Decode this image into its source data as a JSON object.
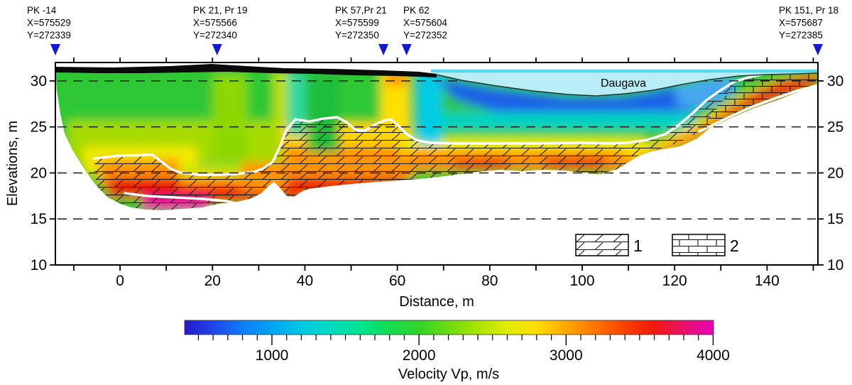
{
  "figure": {
    "type": "seismic refraction tomography cross-section"
  },
  "markers": [
    {
      "label": "PK -14",
      "x_coord": "X=575529",
      "y_coord": "Y=272339",
      "distance_m": -14
    },
    {
      "label": "PK 21, Pr 19",
      "x_coord": "X=575566",
      "y_coord": "Y=272340",
      "distance_m": 21
    },
    {
      "label": "PK 57,Pr 21",
      "x_coord": "X=575599",
      "y_coord": "Y=272350",
      "distance_m": 57
    },
    {
      "label": "PK 62",
      "x_coord": "X=575604",
      "y_coord": "Y=272352",
      "distance_m": 62
    },
    {
      "label": "PK 151, Pr 18",
      "x_coord": "X=575687",
      "y_coord": "Y=272385",
      "distance_m": 151
    }
  ],
  "axes": {
    "x": {
      "title": "Distance, m",
      "tick_values": [
        -10,
        0,
        10,
        20,
        30,
        40,
        50,
        60,
        70,
        80,
        90,
        100,
        110,
        120,
        130,
        140,
        150
      ],
      "labeled_values": [
        0,
        20,
        40,
        60,
        80,
        100,
        120,
        140
      ],
      "range": [
        -14,
        151
      ]
    },
    "y": {
      "title": "Elevations, m",
      "labeled_values": [
        30,
        25,
        20,
        15,
        10
      ],
      "grid_values": [
        30,
        25,
        20,
        15
      ],
      "range": [
        10,
        32
      ]
    }
  },
  "water": {
    "label": "Daugava"
  },
  "legend": {
    "items": [
      {
        "label": "1",
        "pattern": "brick-with-diagonal-hachure"
      },
      {
        "label": "2",
        "pattern": "brick"
      }
    ]
  },
  "colorbar": {
    "title": "Velocity Vp, m/s",
    "major_ticks": [
      1000,
      2000,
      3000,
      4000
    ],
    "minor_tick_step": 100,
    "range": [
      400,
      4000
    ],
    "stops": [
      [
        400,
        "#2418c8"
      ],
      [
        600,
        "#1e46ec"
      ],
      [
        800,
        "#0f7cf8"
      ],
      [
        1000,
        "#00a6f4"
      ],
      [
        1200,
        "#00c8e4"
      ],
      [
        1400,
        "#00dcc0"
      ],
      [
        1600,
        "#00e490"
      ],
      [
        1800,
        "#14dc50"
      ],
      [
        2000,
        "#30d428"
      ],
      [
        2200,
        "#6cdc10"
      ],
      [
        2400,
        "#aae400"
      ],
      [
        2600,
        "#e2ec00"
      ],
      [
        2800,
        "#ffdc00"
      ],
      [
        3000,
        "#ffa800"
      ],
      [
        3200,
        "#ff7400"
      ],
      [
        3400,
        "#fa4000"
      ],
      [
        3600,
        "#f0180c"
      ],
      [
        3800,
        "#ea1168"
      ],
      [
        3950,
        "#e804a8"
      ],
      [
        4000,
        "#e600b4"
      ]
    ]
  },
  "colors": {
    "marker": "#1717cc",
    "water_body": "#b9edf6",
    "water_surface": "#54d8ea",
    "river_bed_line": "#1c3a2e",
    "surface_band": "#0a0a0a",
    "boundary": "#ffffff"
  },
  "chart_data": {
    "type": "heatmap",
    "subtype": "seismic P-wave velocity tomogram along a river crossing",
    "xlabel": "Distance, m",
    "ylabel": "Elevations, m",
    "xlim": [
      -14,
      151
    ],
    "ylim": [
      10,
      32
    ],
    "x_ticks_labeled": [
      0,
      20,
      40,
      60,
      80,
      100,
      120,
      140
    ],
    "y_ticks_labeled": [
      30,
      25,
      20,
      15,
      10
    ],
    "grid": "dashed horizontal lines at elevations 30, 25, 20, 15 m",
    "colorbar": {
      "label": "Velocity Vp, m/s",
      "min": 400,
      "max": 4000,
      "ticks": [
        1000,
        2000,
        3000,
        4000
      ],
      "minor_step": 100
    },
    "survey_points": [
      {
        "label": "PK -14",
        "X": 575529,
        "Y": 272339,
        "distance_m": -14
      },
      {
        "label": "PK 21, Pr 19",
        "X": 575566,
        "Y": 272340,
        "distance_m": 21
      },
      {
        "label": "PK 57,Pr 21",
        "X": 575599,
        "Y": 272350,
        "distance_m": 57
      },
      {
        "label": "PK 62",
        "X": 575604,
        "Y": 272352,
        "distance_m": 62
      },
      {
        "label": "PK 151, Pr 18",
        "X": 575687,
        "Y": 272385,
        "distance_m": 151
      }
    ],
    "river": {
      "name": "Daugava",
      "extent_m": [
        64,
        151
      ],
      "water_level_elevation_m": 31.2,
      "bed_profile_dist_elev": [
        [
          64,
          30.7
        ],
        [
          75,
          29.8
        ],
        [
          88,
          28.8
        ],
        [
          100,
          28.6
        ],
        [
          115,
          29.2
        ],
        [
          128,
          30.0
        ],
        [
          140,
          30.5
        ],
        [
          151,
          30.7
        ]
      ]
    },
    "ground_surface": {
      "extent_m": [
        -14,
        66
      ],
      "elevation_m": 31.0,
      "style": "thick black band"
    },
    "bedrock_top_white_line_dist_elev": [
      [
        -5.5,
        21.6
      ],
      [
        0,
        21.9
      ],
      [
        7,
        22.0
      ],
      [
        11,
        20.4
      ],
      [
        17,
        19.8
      ],
      [
        25,
        19.9
      ],
      [
        31,
        20.5
      ],
      [
        33,
        21.2
      ],
      [
        36,
        24.6
      ],
      [
        38,
        25.8
      ],
      [
        44,
        25.9
      ],
      [
        47,
        26.1
      ],
      [
        51,
        24.7
      ],
      [
        55,
        25.2
      ],
      [
        58,
        25.8
      ],
      [
        62,
        24.2
      ],
      [
        67,
        23.3
      ],
      [
        80,
        23.2
      ],
      [
        100,
        23.3
      ],
      [
        110,
        23.3
      ],
      [
        114,
        23.6
      ],
      [
        118,
        24.2
      ],
      [
        124,
        26.5
      ],
      [
        130,
        29.0
      ],
      [
        133,
        29.9
      ],
      [
        136,
        30.4
      ],
      [
        139,
        30.7
      ],
      [
        142,
        30.8
      ]
    ],
    "deep_boundary_white_line_dist_elev": [
      [
        1,
        17.8
      ],
      [
        6,
        17.5
      ],
      [
        12,
        17.3
      ],
      [
        18,
        17.2
      ],
      [
        23,
        17.0
      ],
      [
        27,
        16.6
      ],
      [
        29,
        16.4
      ]
    ],
    "right_inner_white_line_dist_elev": [
      [
        125,
        24.5
      ],
      [
        131,
        26.0
      ],
      [
        136,
        27.3
      ],
      [
        141,
        28.6
      ],
      [
        146,
        29.5
      ],
      [
        151,
        30.0
      ]
    ],
    "velocity_zones_approx": [
      {
        "zone": "upper sediments (green)",
        "vp_m_s": [
          1600,
          2200
        ],
        "where": "above white bedrock line, dist -14..64 m"
      },
      {
        "zone": "river-bottom low-velocity muds (blue)",
        "vp_m_s": [
          800,
          1300
        ],
        "where": "beneath Daugava, dist 64..118 m, elev 25..30 m"
      },
      {
        "zone": "bedrock top (orange, hachured)",
        "vp_m_s": [
          2600,
          3200
        ],
        "where": "below white line, dist -6..112 m"
      },
      {
        "zone": "dense bedrock (red)",
        "vp_m_s": [
          3300,
          3700
        ],
        "where": "dist 0..30 m elev 16.5..19 m and right wedge dist 118..151 m"
      },
      {
        "zone": "highest velocity patch (magenta)",
        "vp_m_s": [
          3800,
          4000
        ],
        "where": "dist 6..18 m, elev 16..17.5 m"
      }
    ],
    "legend_units": [
      {
        "id": 1,
        "pattern": "brick courses with diagonal hachure"
      },
      {
        "id": 2,
        "pattern": "plain brick courses"
      }
    ]
  }
}
